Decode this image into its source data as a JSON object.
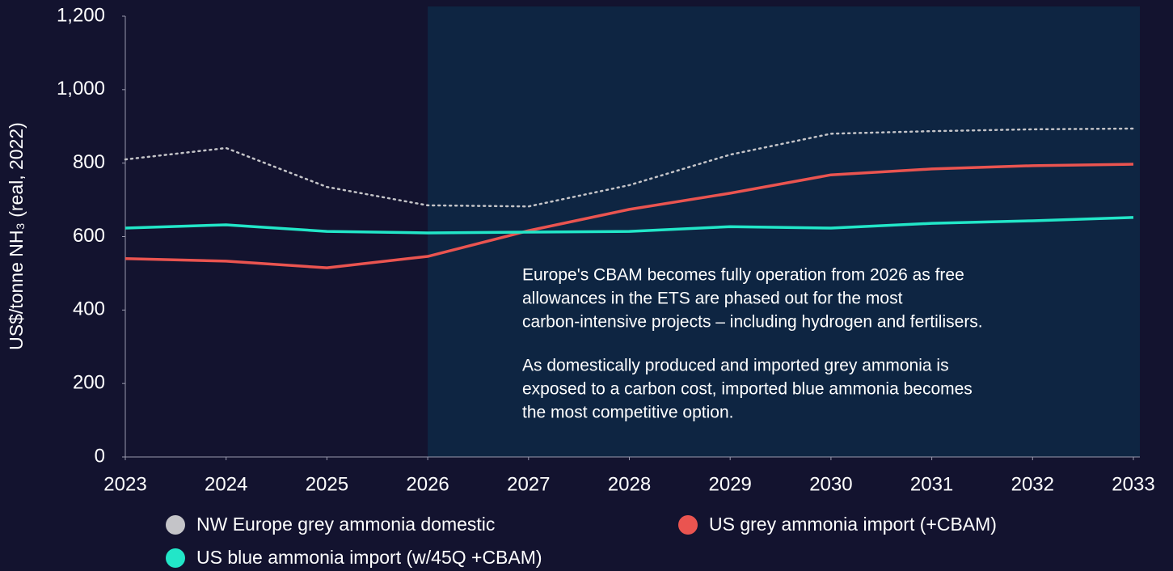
{
  "chart_data": {
    "type": "line",
    "ylabel": "US$/tonne NH₃ (real, 2022)",
    "x": [
      2023,
      2024,
      2025,
      2026,
      2027,
      2028,
      2029,
      2030,
      2031,
      2032,
      2033
    ],
    "xlim": [
      2023,
      2033
    ],
    "xticks": [
      2023,
      2024,
      2025,
      2026,
      2027,
      2028,
      2029,
      2030,
      2031,
      2032,
      2033
    ],
    "ylim": [
      0,
      1200
    ],
    "yticks": [
      0,
      200,
      400,
      600,
      800,
      {
        "value": 1000,
        "label": "1,000"
      },
      {
        "value": 1200,
        "label": "1,200"
      }
    ],
    "shaded_region": {
      "from": 2026,
      "color": "#0e2542"
    },
    "series": [
      {
        "name": "NW Europe grey ammonia domestic",
        "color": "#c4c4c8",
        "style": "dotted",
        "values": [
          810,
          841,
          735,
          685,
          682,
          740,
          823,
          880,
          887,
          892,
          894
        ]
      },
      {
        "name": "US grey ammonia import (+CBAM)",
        "color": "#ea5450",
        "style": "solid",
        "values": [
          540,
          533,
          515,
          546,
          616,
          674,
          718,
          768,
          784,
          793,
          797
        ]
      },
      {
        "name": "US blue ammonia import (w/45Q +CBAM)",
        "color": "#22e6c8",
        "style": "solid",
        "values": [
          623,
          632,
          614,
          610,
          612,
          614,
          627,
          623,
          636,
          643,
          652
        ]
      }
    ],
    "annotations": [
      [
        "Europe's CBAM becomes fully operation from 2026 as free",
        "allowances in the ETS are phased out for the most",
        "carbon-intensive projects – including hydrogen and fertilisers."
      ],
      [
        "As domestically produced and imported grey ammonia is",
        "exposed to a carbon cost, imported blue ammonia becomes",
        "the most competitive option."
      ]
    ]
  }
}
